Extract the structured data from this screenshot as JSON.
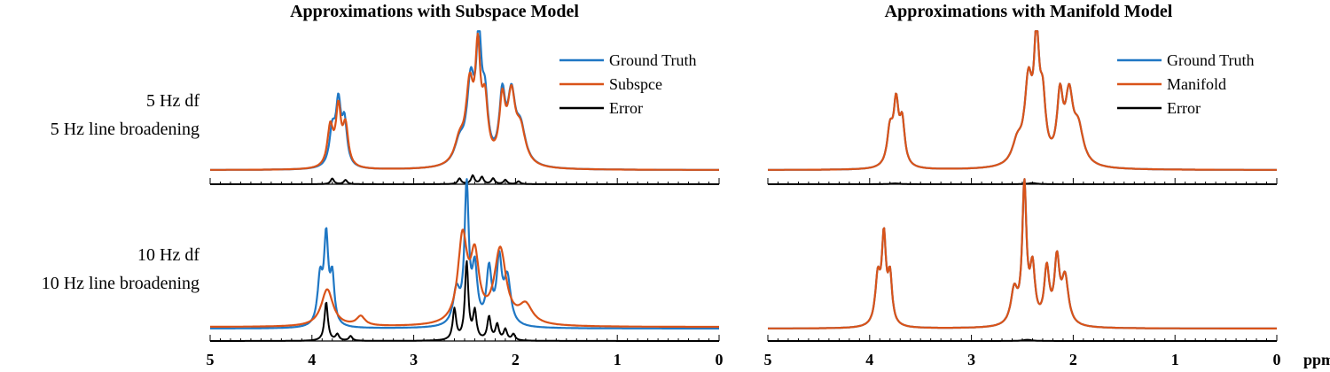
{
  "titles": {
    "left": "Approximations with Subspace Model",
    "right": "Approximations with Manifold Model"
  },
  "row_labels": {
    "row1": [
      "5 Hz df",
      "5 Hz line broadening"
    ],
    "row2": [
      "10 Hz df",
      "10 Hz line broadening"
    ]
  },
  "colors": {
    "ground_truth": "#1f77c4",
    "approx": "#d95319",
    "error": "#000000"
  },
  "chart_data": [
    {
      "type": "line",
      "panel": "top-left",
      "x_axis": {
        "ticks": [
          5,
          4,
          3,
          2,
          1,
          0
        ],
        "reversed": true,
        "xlim": [
          0,
          5
        ]
      },
      "ylim": [
        0,
        1
      ],
      "legend": "top-right",
      "series": [
        {
          "name": "Ground Truth",
          "role": "gt",
          "baseline": 0.1,
          "peaks": [
            [
              3.8,
              0.034,
              0.25
            ],
            [
              3.74,
              0.03,
              0.42
            ],
            [
              3.68,
              0.03,
              0.3
            ],
            [
              2.55,
              0.06,
              0.15
            ],
            [
              2.44,
              0.045,
              0.55
            ],
            [
              2.36,
              0.03,
              0.8
            ],
            [
              2.3,
              0.035,
              0.4
            ],
            [
              2.13,
              0.035,
              0.45
            ],
            [
              2.04,
              0.045,
              0.45
            ],
            [
              1.95,
              0.06,
              0.25
            ]
          ]
        },
        {
          "name": "Subspce",
          "role": "approx",
          "baseline": 0.1,
          "peaks": [
            [
              3.82,
              0.034,
              0.28
            ],
            [
              3.74,
              0.03,
              0.4
            ],
            [
              3.67,
              0.032,
              0.28
            ],
            [
              2.55,
              0.06,
              0.16
            ],
            [
              2.45,
              0.045,
              0.52
            ],
            [
              2.37,
              0.03,
              0.72
            ],
            [
              2.3,
              0.035,
              0.4
            ],
            [
              2.13,
              0.035,
              0.42
            ],
            [
              2.04,
              0.045,
              0.45
            ],
            [
              1.95,
              0.06,
              0.24
            ]
          ]
        },
        {
          "name": "Error",
          "role": "error",
          "baseline": 0.0,
          "peaks": [
            [
              3.8,
              0.02,
              0.04
            ],
            [
              3.67,
              0.02,
              0.03
            ],
            [
              2.55,
              0.02,
              0.04
            ],
            [
              2.42,
              0.02,
              0.06
            ],
            [
              2.33,
              0.02,
              0.05
            ],
            [
              2.22,
              0.02,
              0.04
            ],
            [
              2.1,
              0.02,
              0.03
            ],
            [
              1.97,
              0.02,
              0.02
            ]
          ]
        }
      ]
    },
    {
      "type": "line",
      "panel": "top-right",
      "x_axis": {
        "ticks": [
          5,
          4,
          3,
          2,
          1,
          0
        ],
        "reversed": true,
        "xlim": [
          0,
          5
        ]
      },
      "ylim": [
        0,
        1
      ],
      "legend": "top-right",
      "series": [
        {
          "name": "Ground Truth",
          "role": "gt",
          "baseline": 0.1,
          "peaks": [
            [
              3.8,
              0.034,
              0.25
            ],
            [
              3.74,
              0.03,
              0.42
            ],
            [
              3.68,
              0.03,
              0.3
            ],
            [
              2.55,
              0.06,
              0.15
            ],
            [
              2.44,
              0.045,
              0.55
            ],
            [
              2.36,
              0.03,
              0.8
            ],
            [
              2.3,
              0.035,
              0.4
            ],
            [
              2.13,
              0.035,
              0.45
            ],
            [
              2.04,
              0.045,
              0.45
            ],
            [
              1.95,
              0.06,
              0.25
            ]
          ]
        },
        {
          "name": "Manifold",
          "role": "approx",
          "baseline": 0.1,
          "peaks": [
            [
              3.8,
              0.034,
              0.25
            ],
            [
              3.74,
              0.03,
              0.42
            ],
            [
              3.68,
              0.03,
              0.3
            ],
            [
              2.55,
              0.06,
              0.15
            ],
            [
              2.44,
              0.045,
              0.55
            ],
            [
              2.36,
              0.03,
              0.8
            ],
            [
              2.3,
              0.035,
              0.4
            ],
            [
              2.13,
              0.035,
              0.45
            ],
            [
              2.04,
              0.045,
              0.45
            ],
            [
              1.95,
              0.06,
              0.25
            ]
          ]
        },
        {
          "name": "Error",
          "role": "error",
          "baseline": 0.0,
          "peaks": [
            [
              2.4,
              0.05,
              0.008
            ],
            [
              3.75,
              0.05,
              0.006
            ]
          ]
        }
      ]
    },
    {
      "type": "line",
      "panel": "bottom-left",
      "x_axis": {
        "ticks": [
          5,
          4,
          3,
          2,
          1,
          0
        ],
        "reversed": true,
        "xlim": [
          0,
          5
        ]
      },
      "ylim": [
        0,
        1
      ],
      "legend": "none",
      "series": [
        {
          "name": "Ground Truth",
          "role": "gt",
          "baseline": 0.08,
          "peaks": [
            [
              3.92,
              0.03,
              0.3
            ],
            [
              3.86,
              0.025,
              0.55
            ],
            [
              3.8,
              0.025,
              0.3
            ],
            [
              2.58,
              0.04,
              0.22
            ],
            [
              2.48,
              0.025,
              0.88
            ],
            [
              2.4,
              0.03,
              0.35
            ],
            [
              2.26,
              0.03,
              0.35
            ],
            [
              2.16,
              0.03,
              0.4
            ],
            [
              2.08,
              0.04,
              0.3
            ]
          ]
        },
        {
          "name": "Subspce",
          "role": "approx",
          "baseline": 0.09,
          "peaks": [
            [
              3.85,
              0.07,
              0.24
            ],
            [
              3.52,
              0.05,
              0.06
            ],
            [
              2.52,
              0.055,
              0.55
            ],
            [
              2.4,
              0.05,
              0.4
            ],
            [
              2.15,
              0.07,
              0.48
            ],
            [
              1.9,
              0.08,
              0.12
            ]
          ]
        },
        {
          "name": "Error",
          "role": "error",
          "baseline": 0.0,
          "peaks": [
            [
              3.86,
              0.02,
              0.25
            ],
            [
              3.75,
              0.02,
              0.04
            ],
            [
              3.62,
              0.02,
              0.03
            ],
            [
              2.6,
              0.02,
              0.2
            ],
            [
              2.48,
              0.02,
              0.5
            ],
            [
              2.4,
              0.02,
              0.18
            ],
            [
              2.26,
              0.02,
              0.15
            ],
            [
              2.18,
              0.02,
              0.1
            ],
            [
              2.1,
              0.02,
              0.07
            ],
            [
              2.02,
              0.02,
              0.04
            ]
          ]
        }
      ]
    },
    {
      "type": "line",
      "panel": "bottom-right",
      "x_axis": {
        "ticks": [
          5,
          4,
          3,
          2,
          1,
          0
        ],
        "reversed": true,
        "xlim": [
          0,
          5
        ],
        "unit_label": "ppm"
      },
      "ylim": [
        0,
        1
      ],
      "legend": "none",
      "series": [
        {
          "name": "Ground Truth",
          "role": "gt",
          "baseline": 0.08,
          "peaks": [
            [
              3.92,
              0.03,
              0.3
            ],
            [
              3.86,
              0.025,
              0.55
            ],
            [
              3.8,
              0.025,
              0.3
            ],
            [
              2.58,
              0.04,
              0.22
            ],
            [
              2.48,
              0.025,
              0.88
            ],
            [
              2.4,
              0.03,
              0.35
            ],
            [
              2.26,
              0.03,
              0.35
            ],
            [
              2.16,
              0.03,
              0.4
            ],
            [
              2.08,
              0.04,
              0.3
            ]
          ]
        },
        {
          "name": "Manifold",
          "role": "approx",
          "baseline": 0.08,
          "peaks": [
            [
              3.92,
              0.03,
              0.3
            ],
            [
              3.86,
              0.025,
              0.55
            ],
            [
              3.8,
              0.025,
              0.3
            ],
            [
              2.58,
              0.04,
              0.22
            ],
            [
              2.48,
              0.025,
              0.88
            ],
            [
              2.4,
              0.03,
              0.35
            ],
            [
              2.26,
              0.03,
              0.35
            ],
            [
              2.16,
              0.03,
              0.4
            ],
            [
              2.08,
              0.04,
              0.3
            ]
          ]
        },
        {
          "name": "Error",
          "role": "error",
          "baseline": 0.0,
          "peaks": [
            [
              2.45,
              0.05,
              0.008
            ]
          ]
        }
      ]
    }
  ]
}
